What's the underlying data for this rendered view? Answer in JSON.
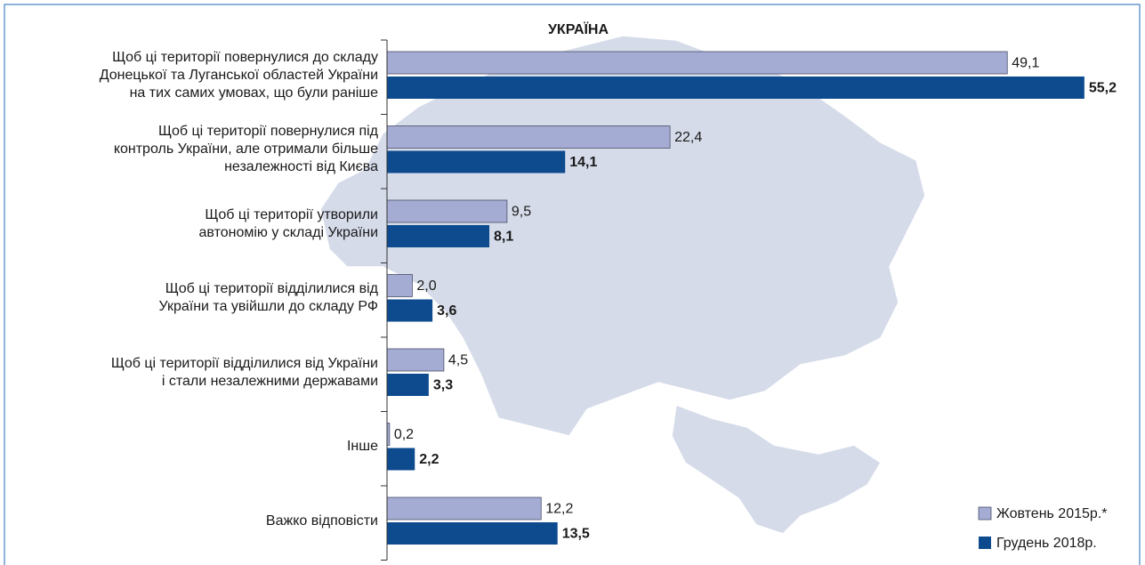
{
  "chart_data": {
    "type": "bar",
    "orientation": "horizontal",
    "map_label": "УКРАЇНА",
    "categories": [
      "Щоб ці території повернулися до складу\nДонецької та Луганської областей України\nна тих самих умовах, що були раніше",
      "Щоб ці території повернулися під\nконтроль України, але отримали більше\nнезалежності від Києва",
      "Щоб ці території утворили\nавтономію у складі України",
      "Щоб ці території відділилися від\nУкраїни та увійшли до складу РФ",
      "Щоб ці території відділилися від України\nі стали незалежними державами",
      "Інше",
      "Важко відповісти"
    ],
    "series": [
      {
        "name": "Жовтень 2015р.*",
        "color": "#a4acd3",
        "values": [
          49.1,
          22.4,
          9.5,
          2.0,
          4.5,
          0.2,
          12.2
        ],
        "value_labels": [
          "49,1",
          "22,4",
          "9,5",
          "2,0",
          "4,5",
          "0,2",
          "12,2"
        ]
      },
      {
        "name": "Грудень 2018р.",
        "color": "#0d4a8e",
        "values": [
          55.2,
          14.1,
          8.1,
          3.6,
          3.3,
          2.2,
          13.5
        ],
        "value_labels": [
          "55,2",
          "14,1",
          "8,1",
          "3,6",
          "3,3",
          "2,2",
          "13,5"
        ]
      }
    ],
    "legend": "lower right"
  }
}
